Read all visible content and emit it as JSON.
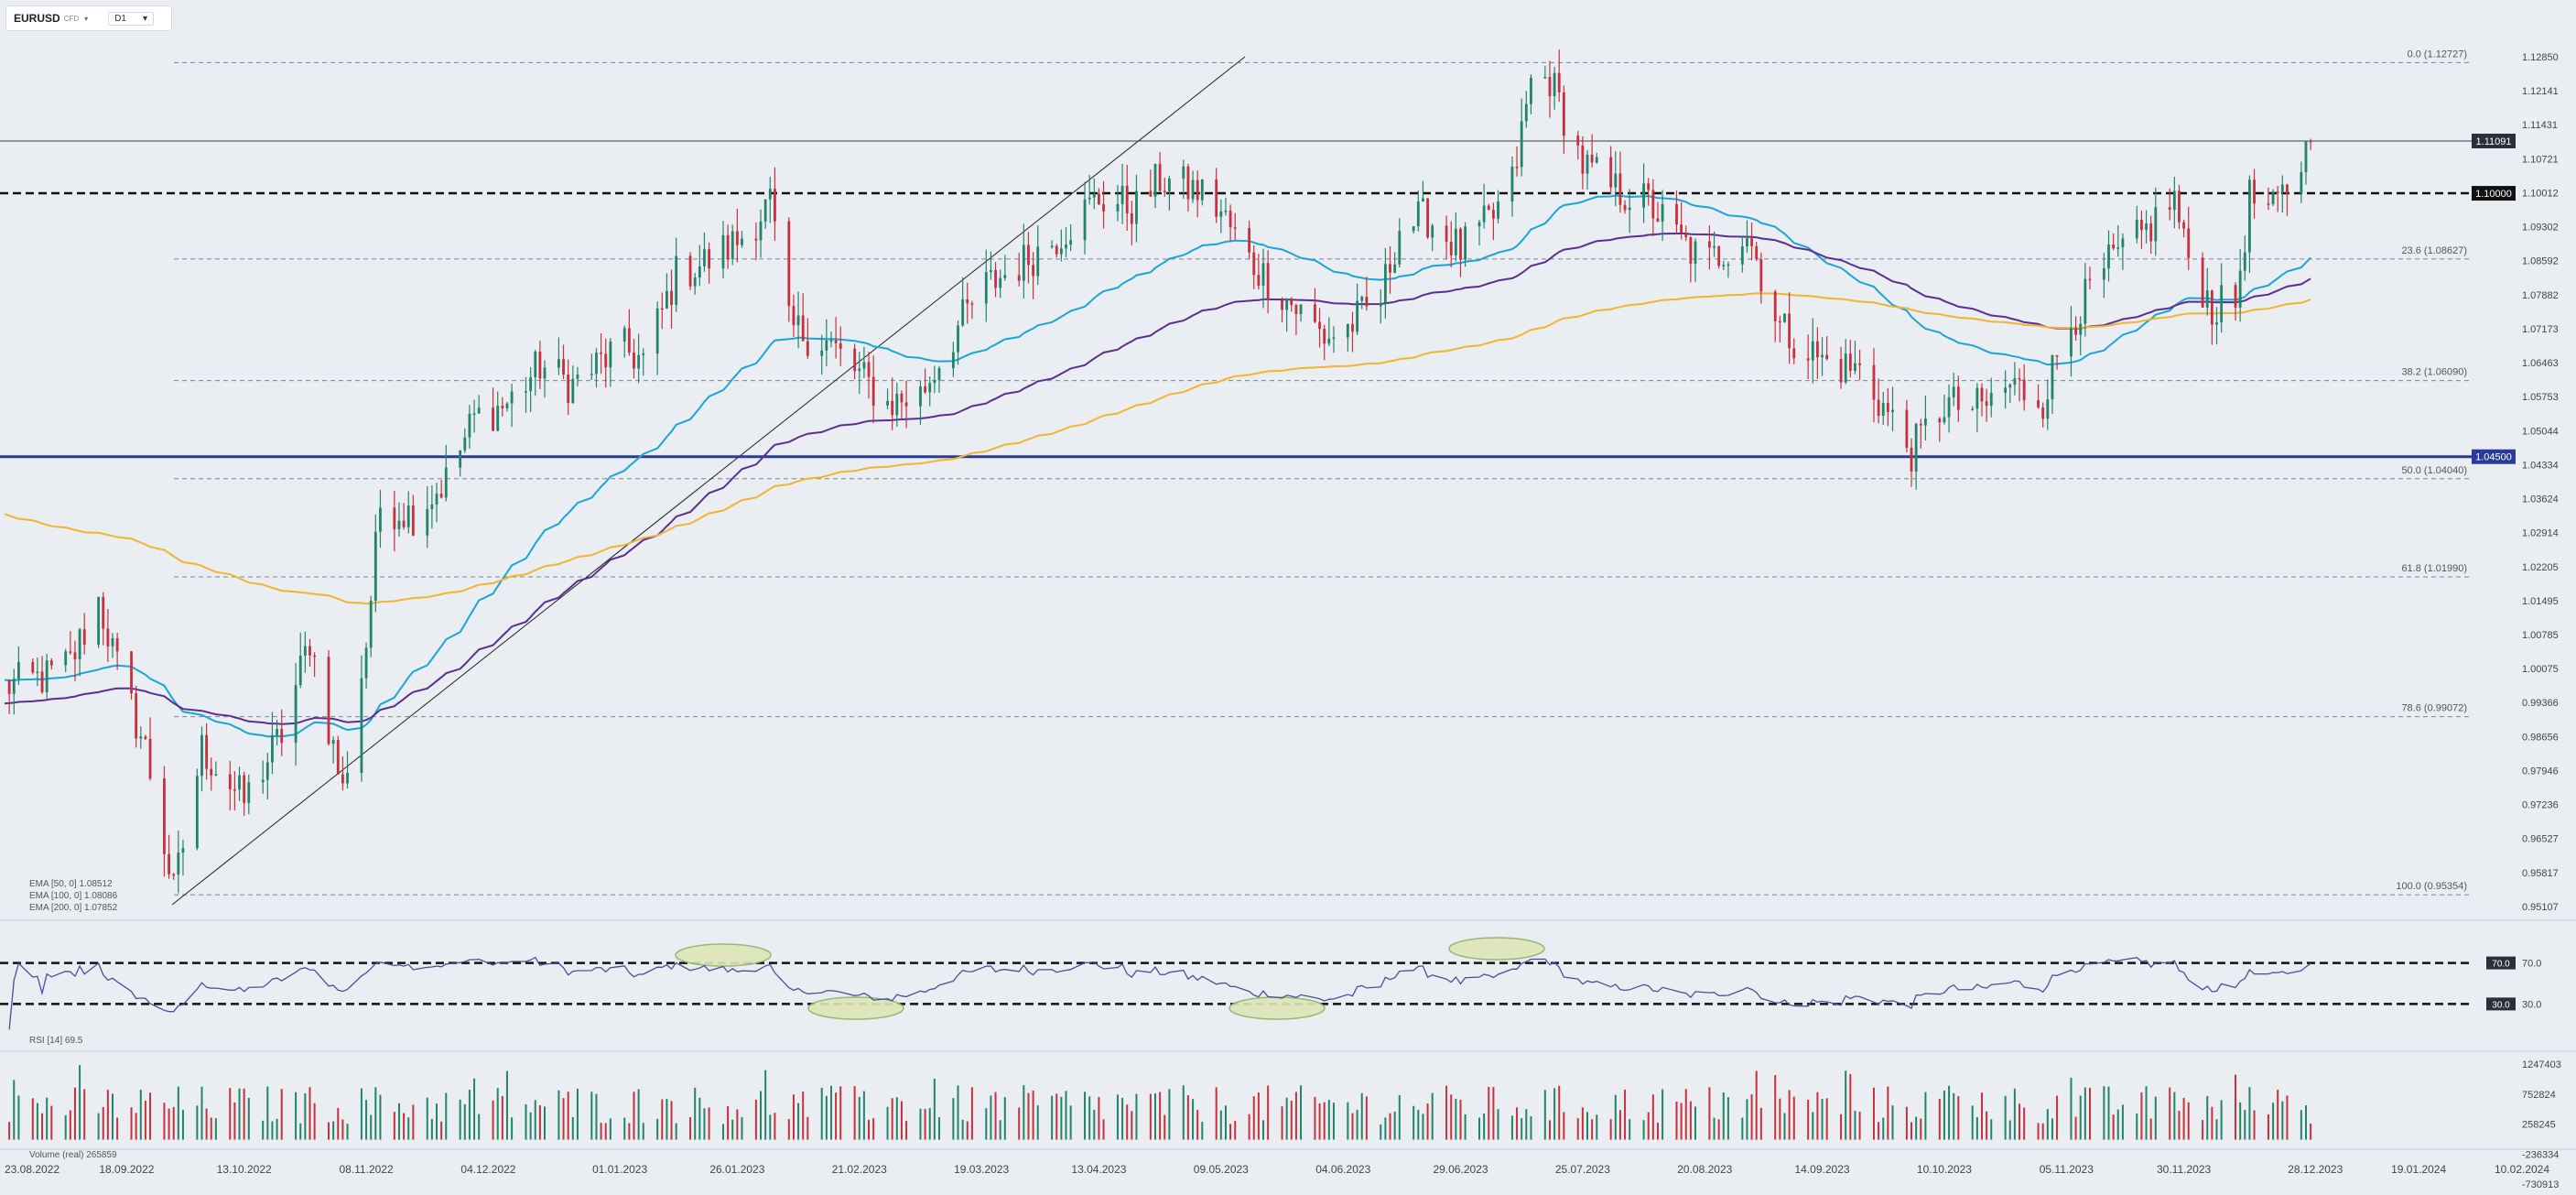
{
  "header": {
    "symbol": "EURUSD",
    "source": "CFD",
    "timeframe": "D1"
  },
  "price_axis_ticks": [
    "1.12850",
    "1.12141",
    "1.11431",
    "1.10721",
    "1.10012",
    "1.09302",
    "1.08592",
    "1.07882",
    "1.07173",
    "1.06463",
    "1.05753",
    "1.05044",
    "1.04334",
    "1.03624",
    "1.02914",
    "1.02205",
    "1.01495",
    "1.00785",
    "1.00075",
    "0.99366",
    "0.98656",
    "0.97946",
    "0.97236",
    "0.96527",
    "0.95817",
    "0.95107"
  ],
  "rsi_axis_ticks": [
    "70.0",
    "30.0"
  ],
  "volume_axis_ticks": [
    "1247403",
    "752824",
    "258245",
    "-236334",
    "-730913"
  ],
  "date_axis_ticks": [
    "23.08.2022",
    "18.09.2022",
    "13.10.2022",
    "08.11.2022",
    "04.12.2022",
    "01.01.2023",
    "26.01.2023",
    "21.02.2023",
    "19.03.2023",
    "13.04.2023",
    "09.05.2023",
    "04.06.2023",
    "29.06.2023",
    "25.07.2023",
    "20.08.2023",
    "14.09.2023",
    "10.10.2023",
    "05.11.2023",
    "30.11.2023",
    "28.12.2023",
    "19.01.2024",
    "10.02.2024"
  ],
  "current_price_label": "1.11091",
  "horizontal_levels": [
    {
      "label": "1.10000",
      "color": "#111111"
    },
    {
      "label": "1.04500",
      "color": "#2a3a9b"
    }
  ],
  "fibonacci_labels": [
    "0.0 (1.12727)",
    "23.6 (1.08627)",
    "38.2 (1.06090)",
    "50.0 (1.04040)",
    "61.8 (1.01990)",
    "78.6 (0.99072)",
    "100.0 (0.95354)"
  ],
  "indicator_legend": {
    "ema50": "EMA [50, 0]  1.08512",
    "ema100": "EMA [100, 0]  1.08086",
    "ema200": "EMA [200, 0]  1.07852",
    "rsi": "RSI [14]  69.5",
    "volume": "Volume  (real)  265859"
  },
  "colors": {
    "up": "#22856a",
    "down": "#c8303d",
    "ema50": "#1aa5d8",
    "ema100": "#5b2f91",
    "ema200": "#f2b431",
    "rsi": "#4a4f9c",
    "background": "#eaedf1"
  },
  "chart_data": {
    "type": "candlestick",
    "instrument": "EURUSD",
    "timeframe": "D1",
    "x_range": [
      "23.08.2022",
      "10.02.2024"
    ],
    "price_range": [
      0.95107,
      1.1285
    ],
    "close_path": [
      [
        "23.08.2022",
        0.997
      ],
      [
        "01.09.2022",
        0.999
      ],
      [
        "06.09.2022",
        1.002
      ],
      [
        "12.09.2022",
        1.015
      ],
      [
        "16.09.2022",
        1.001
      ],
      [
        "22.09.2022",
        0.984
      ],
      [
        "28.09.2022",
        0.954
      ],
      [
        "04.10.2022",
        0.984
      ],
      [
        "13.10.2022",
        0.973
      ],
      [
        "21.10.2022",
        0.987
      ],
      [
        "27.10.2022",
        1.007
      ],
      [
        "03.11.2022",
        0.975
      ],
      [
        "08.11.2022",
        1.006
      ],
      [
        "11.11.2022",
        1.035
      ],
      [
        "18.11.2022",
        1.033
      ],
      [
        "25.11.2022",
        1.04
      ],
      [
        "01.12.2022",
        1.053
      ],
      [
        "08.12.2022",
        1.056
      ],
      [
        "15.12.2022",
        1.064
      ],
      [
        "22.12.2022",
        1.06
      ],
      [
        "01.01.2023",
        1.068
      ],
      [
        "06.01.2023",
        1.065
      ],
      [
        "13.01.2023",
        1.083
      ],
      [
        "20.01.2023",
        1.086
      ],
      [
        "26.01.2023",
        1.09
      ],
      [
        "02.02.2023",
        1.098
      ],
      [
        "06.02.2023",
        1.072
      ],
      [
        "14.02.2023",
        1.069
      ],
      [
        "21.02.2023",
        1.062
      ],
      [
        "27.02.2023",
        1.056
      ],
      [
        "06.03.2023",
        1.058
      ],
      [
        "14.03.2023",
        1.072
      ],
      [
        "19.03.2023",
        1.08
      ],
      [
        "27.03.2023",
        1.085
      ],
      [
        "03.04.2023",
        1.09
      ],
      [
        "13.04.2023",
        1.099
      ],
      [
        "21.04.2023",
        1.097
      ],
      [
        "26.04.2023",
        1.103
      ],
      [
        "05.05.2023",
        1.1
      ],
      [
        "09.05.2023",
        1.096
      ],
      [
        "15.05.2023",
        1.086
      ],
      [
        "22.05.2023",
        1.079
      ],
      [
        "31.05.2023",
        1.07
      ],
      [
        "04.06.2023",
        1.071
      ],
      [
        "12.06.2023",
        1.078
      ],
      [
        "16.06.2023",
        1.093
      ],
      [
        "22.06.2023",
        1.095
      ],
      [
        "29.06.2023",
        1.088
      ],
      [
        "06.07.2023",
        1.095
      ],
      [
        "10.07.2023",
        1.102
      ],
      [
        "14.07.2023",
        1.123
      ],
      [
        "18.07.2023",
        1.124
      ],
      [
        "25.07.2023",
        1.106
      ],
      [
        "31.07.2023",
        1.101
      ],
      [
        "08.08.2023",
        1.098
      ],
      [
        "14.08.2023",
        1.091
      ],
      [
        "20.08.2023",
        1.085
      ],
      [
        "29.08.2023",
        1.092
      ],
      [
        "05.09.2023",
        1.072
      ],
      [
        "14.09.2023",
        1.065
      ],
      [
        "22.09.2023",
        1.063
      ],
      [
        "26.09.2023",
        1.057
      ],
      [
        "03.10.2023",
        1.046
      ],
      [
        "10.10.2023",
        1.056
      ],
      [
        "18.10.2023",
        1.055
      ],
      [
        "24.10.2023",
        1.06
      ],
      [
        "31.10.2023",
        1.057
      ],
      [
        "05.11.2023",
        1.072
      ],
      [
        "14.11.2023",
        1.085
      ],
      [
        "21.11.2023",
        1.091
      ],
      [
        "28.11.2023",
        1.099
      ],
      [
        "30.11.2023",
        1.089
      ],
      [
        "06.12.2023",
        1.076
      ],
      [
        "11.12.2023",
        1.077
      ],
      [
        "14.12.2023",
        1.099
      ],
      [
        "19.12.2023",
        1.096
      ],
      [
        "22.12.2023",
        1.101
      ],
      [
        "27.12.2023",
        1.1109
      ]
    ],
    "ema": [
      {
        "name": "EMA [50, 0]",
        "value": 1.08512
      },
      {
        "name": "EMA [100, 0]",
        "value": 1.08086
      },
      {
        "name": "EMA [200, 0]",
        "value": 1.07852
      }
    ],
    "rsi": {
      "name": "RSI [14]",
      "value": 69.5,
      "levels": [
        70,
        30
      ]
    },
    "volume": {
      "name": "Volume (real)",
      "value": 265859
    },
    "horizontal_levels": [
      1.1,
      1.045
    ],
    "fibonacci": [
      {
        "level": "0.0",
        "price": 1.12727
      },
      {
        "level": "23.6",
        "price": 1.08627
      },
      {
        "level": "38.2",
        "price": 1.0609
      },
      {
        "level": "50.0",
        "price": 1.0404
      },
      {
        "level": "61.8",
        "price": 1.0199
      },
      {
        "level": "78.6",
        "price": 0.99072
      },
      {
        "level": "100.0",
        "price": 0.95354
      }
    ],
    "last_price": 1.11091,
    "grid": false
  }
}
